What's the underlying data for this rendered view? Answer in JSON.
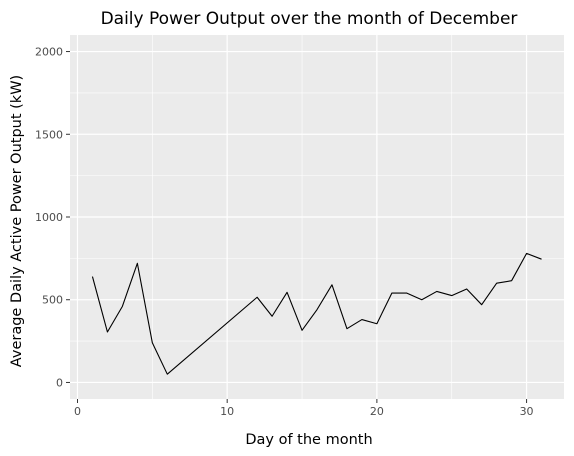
{
  "chart_data": {
    "type": "line",
    "title": "Daily Power Output over the month of December",
    "xlabel": "Day of the month",
    "ylabel": "Average Daily Active Power Output (kW)",
    "xlim": [
      -0.5,
      32.5
    ],
    "ylim": [
      -100,
      2100
    ],
    "x_ticks": [
      0,
      10,
      20,
      30
    ],
    "x_tick_labels": [
      "0",
      "10",
      "20",
      "30"
    ],
    "y_ticks": [
      0,
      500,
      1000,
      1500,
      2000
    ],
    "y_tick_labels": [
      "0",
      "500",
      "1000",
      "1500",
      "2000"
    ],
    "grid": true,
    "background": "#ebebeb",
    "line_color": "#000000",
    "series": [
      {
        "x": [
          1,
          2,
          3,
          4,
          5,
          6,
          12,
          13,
          14,
          15,
          16,
          17,
          18,
          19,
          20,
          21,
          22,
          23,
          24,
          25,
          26,
          27,
          28,
          29,
          30,
          31
        ],
        "values": [
          640,
          305,
          460,
          720,
          240,
          50,
          515,
          400,
          545,
          315,
          440,
          590,
          325,
          380,
          355,
          540,
          540,
          500,
          550,
          525,
          565,
          470,
          600,
          615,
          780,
          745
        ]
      }
    ]
  }
}
